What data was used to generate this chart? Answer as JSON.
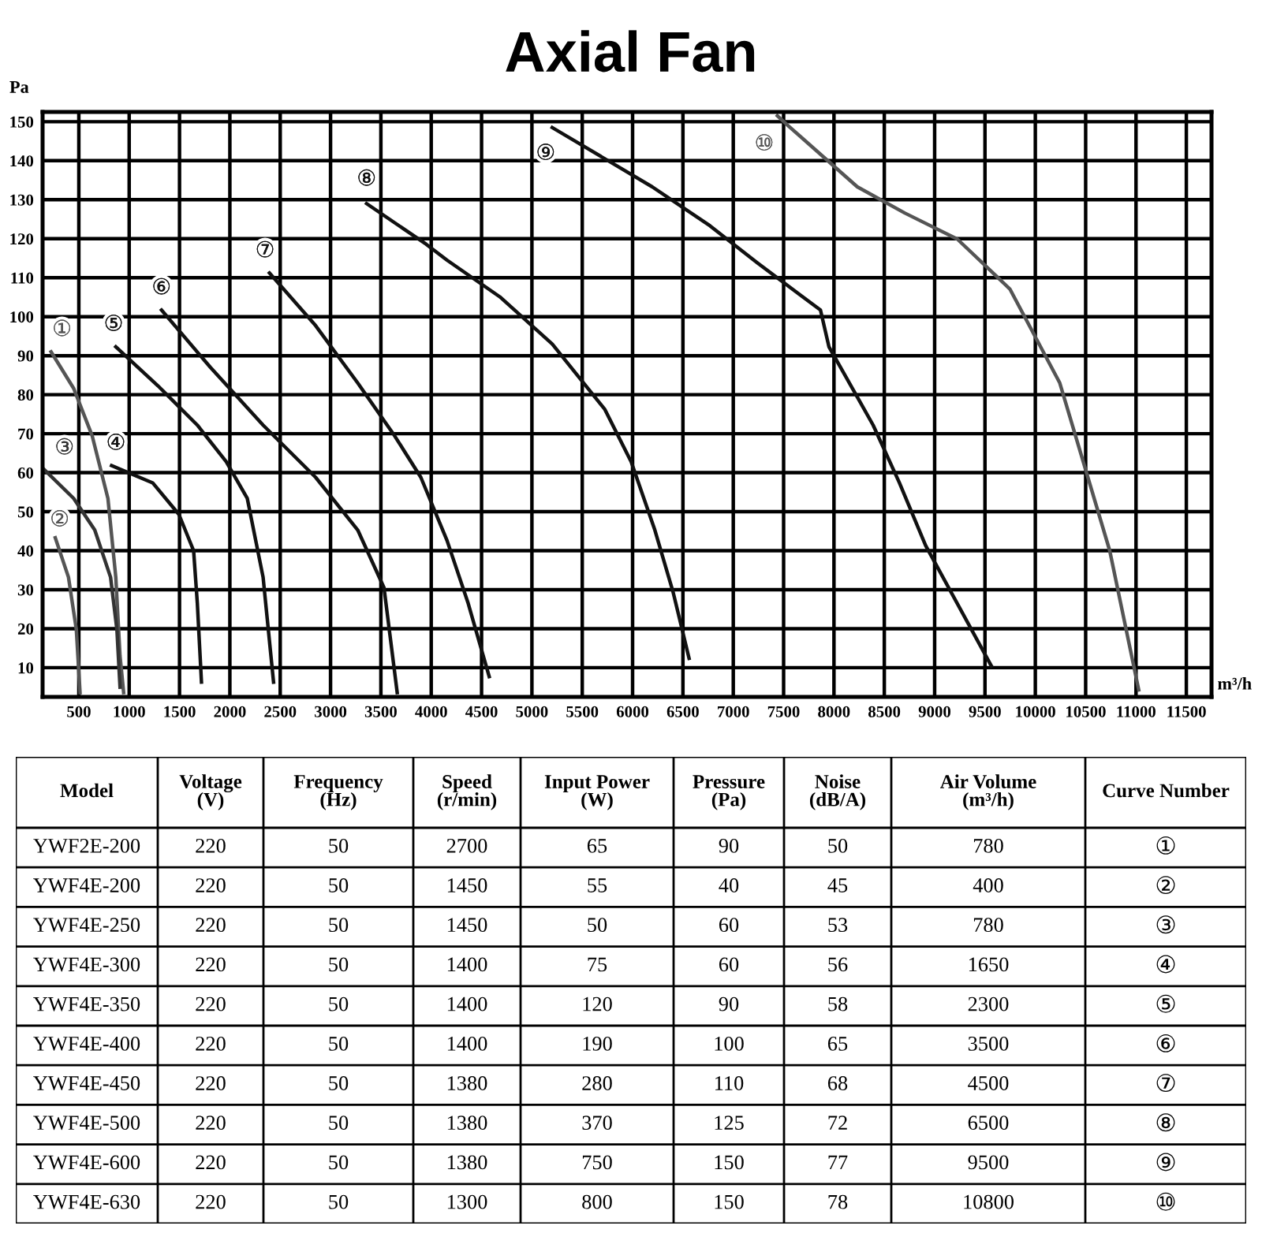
{
  "chart_data": [
    {
      "type": "line",
      "title": "Axial Fan",
      "xlabel": "m³/h",
      "ylabel": "Pa",
      "xlim": [
        140,
        11750
      ],
      "ylim": [
        2.5,
        152.5
      ],
      "xticks": [
        500,
        1000,
        1500,
        2000,
        2500,
        3000,
        3500,
        4000,
        4500,
        5000,
        5500,
        6000,
        6500,
        7000,
        7500,
        8000,
        8500,
        9000,
        9500,
        10000,
        10500,
        11000,
        11500
      ],
      "yticks": [
        10,
        20,
        30,
        40,
        50,
        60,
        70,
        80,
        90,
        100,
        110,
        120,
        130,
        140,
        150
      ],
      "grid": true,
      "marker": "none",
      "line_style": "solid",
      "series": [
        {
          "name": "①",
          "color": "#555555",
          "x": [
            224,
            449,
            632,
            789,
            867,
            909,
            945
          ],
          "values": [
            91,
            81.6,
            69.5,
            53.4,
            33.2,
            13,
            3.6
          ]
        },
        {
          "name": "②",
          "color": "#555555",
          "x": [
            266,
            397,
            475,
            512
          ],
          "values": [
            43.3,
            33.2,
            19.8,
            3.6
          ]
        },
        {
          "name": "③",
          "color": "#333333",
          "x": [
            140,
            449,
            658,
            815,
            878,
            909
          ],
          "values": [
            61.2,
            53.4,
            45.3,
            33.2,
            19.8,
            5
          ]
        },
        {
          "name": "④",
          "color": "#111111",
          "x": [
            825,
            1233,
            1494,
            1640,
            1677,
            1718
          ],
          "values": [
            61.8,
            57.4,
            49.3,
            40,
            26.5,
            6.3
          ]
        },
        {
          "name": "⑤",
          "color": "#111111",
          "x": [
            867,
            1285,
            1677,
            1964,
            2173,
            2330,
            2434
          ],
          "values": [
            92.3,
            82.3,
            72.2,
            62.8,
            53.4,
            33.2,
            6.3
          ]
        },
        {
          "name": "⑥",
          "color": "#111111",
          "x": [
            1321,
            1807,
            2330,
            2852,
            3270,
            3531,
            3662
          ],
          "values": [
            101.7,
            87,
            72.2,
            58.8,
            45.3,
            30.5,
            3.6
          ]
        },
        {
          "name": "⑦",
          "color": "#111111",
          "x": [
            2393,
            2852,
            3270,
            3635,
            3897,
            4157,
            4367,
            4576
          ],
          "values": [
            111.2,
            97.7,
            83,
            69.5,
            58.8,
            42.6,
            26.5,
            7.7
          ]
        },
        {
          "name": "⑧",
          "color": "#111111",
          "x": [
            3358,
            3949,
            4157,
            4681,
            5202,
            5725,
            5986,
            6221,
            6404,
            6561
          ],
          "values": [
            129,
            118.6,
            114.5,
            105.1,
            93,
            76.2,
            62.8,
            45.3,
            29.2,
            12.4
          ]
        },
        {
          "name": "⑨",
          "color": "#111111",
          "x": [
            5202,
            6195,
            6769,
            7240,
            7866,
            7950,
            8389,
            8650,
            8911,
            9564
          ],
          "values": [
            148.5,
            133.3,
            123.3,
            113.8,
            101.7,
            92.3,
            72.2,
            57.4,
            41.3,
            10.4
          ]
        },
        {
          "name": "⑩",
          "color": "#555555",
          "x": [
            7438,
            7553,
            8232,
            8702,
            9225,
            9747,
            10243,
            10739,
            11027
          ],
          "values": [
            151.5,
            148.8,
            133.3,
            126.6,
            119.9,
            107.1,
            83,
            40,
            4.3
          ]
        }
      ]
    },
    {
      "type": "other",
      "categories": [
        "Model",
        "Voltage\n(V)",
        "Frequency\n(Hz)",
        "Speed\n(r/min)",
        "Input Power\n(W)",
        "Pressure\n(Pa)",
        "Noise\n(dB/A)",
        "Air Volume\n(m³/h)",
        "Curve Number"
      ],
      "cell_labels": [
        [
          "YWF2E-200",
          "220",
          "50",
          "2700",
          "65",
          "90",
          "50",
          "780",
          "①"
        ],
        [
          "YWF4E-200",
          "220",
          "50",
          "1450",
          "55",
          "40",
          "45",
          "400",
          "②"
        ],
        [
          "YWF4E-250",
          "220",
          "50",
          "1450",
          "50",
          "60",
          "53",
          "780",
          "③"
        ],
        [
          "YWF4E-300",
          "220",
          "50",
          "1400",
          "75",
          "60",
          "56",
          "1650",
          "④"
        ],
        [
          "YWF4E-350",
          "220",
          "50",
          "1400",
          "120",
          "90",
          "58",
          "2300",
          "⑤"
        ],
        [
          "YWF4E-400",
          "220",
          "50",
          "1400",
          "190",
          "100",
          "65",
          "3500",
          "⑥"
        ],
        [
          "YWF4E-450",
          "220",
          "50",
          "1380",
          "280",
          "110",
          "68",
          "4500",
          "⑦"
        ],
        [
          "YWF4E-500",
          "220",
          "50",
          "1380",
          "370",
          "125",
          "72",
          "6500",
          "⑧"
        ],
        [
          "YWF4E-600",
          "220",
          "50",
          "1380",
          "750",
          "150",
          "77",
          "9500",
          "⑨"
        ],
        [
          "YWF4E-630",
          "220",
          "50",
          "1300",
          "800",
          "150",
          "78",
          "10800",
          "⑩"
        ]
      ]
    }
  ]
}
